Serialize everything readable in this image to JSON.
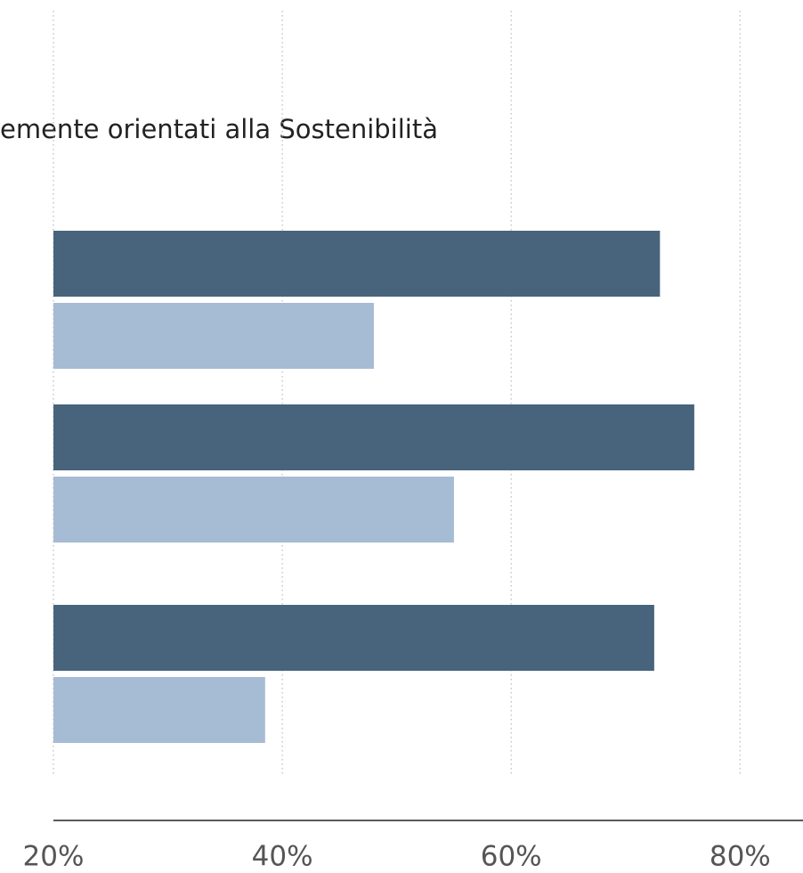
{
  "chart_data": {
    "type": "barh",
    "title": "emente orientati alla Sostenibilità",
    "categories": [
      null,
      null,
      null
    ],
    "series": [
      {
        "color": "#48647c",
        "values": [
          73,
          76,
          72.5
        ]
      },
      {
        "color": "#a6bbd4",
        "values": [
          48,
          55,
          38.5
        ]
      }
    ],
    "xlim": [
      20,
      85.5
    ],
    "xticks": [
      {
        "value": 20,
        "label": "20%"
      },
      {
        "value": 40,
        "label": "40%"
      },
      {
        "value": 60,
        "label": "60%"
      },
      {
        "value": 80,
        "label": "80%"
      }
    ],
    "grid": true
  }
}
